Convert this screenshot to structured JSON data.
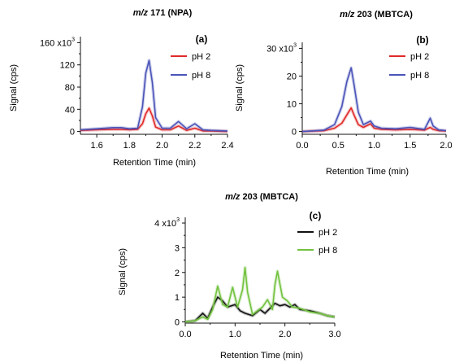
{
  "figure": {
    "colors": {
      "ph2": "#e02a2a",
      "ph8": "#4a54b8",
      "ph2_c": "#111111",
      "ph8_c": "#72c23f"
    }
  },
  "chart_data": [
    {
      "id": "a",
      "type": "line",
      "panel_label": "(a)",
      "title": {
        "italic": "m/z",
        "rest": " 171 (NPA)"
      },
      "xlabel": "Retention Time (min)",
      "ylabel": "Signal (cps)",
      "xlim": [
        1.5,
        2.4
      ],
      "ylim": [
        -5,
        165
      ],
      "xticks": [
        1.6,
        1.8,
        2.0,
        2.2,
        2.4
      ],
      "xtick_labels": [
        "1.6",
        "1.8",
        "2.0",
        "2.2",
        "2.4"
      ],
      "yticks": [
        0,
        40,
        80,
        120,
        160
      ],
      "ytick_labels": [
        "0",
        "40",
        "80",
        "120",
        "160 x10"
      ],
      "y_exponent_label": "3",
      "legend_position": "top-right",
      "series": [
        {
          "name": "pH 2",
          "color_key": "ph2",
          "x": [
            1.5,
            1.6,
            1.7,
            1.75,
            1.8,
            1.85,
            1.88,
            1.9,
            1.92,
            1.94,
            1.96,
            2.0,
            2.05,
            2.1,
            2.15,
            2.2,
            2.25,
            2.3,
            2.4
          ],
          "y": [
            2,
            3,
            4,
            4,
            3,
            4,
            14,
            32,
            42,
            28,
            8,
            3,
            3,
            10,
            2,
            6,
            1,
            1,
            0
          ]
        },
        {
          "name": "pH 8",
          "color_key": "ph8",
          "x": [
            1.5,
            1.6,
            1.7,
            1.75,
            1.8,
            1.85,
            1.88,
            1.9,
            1.92,
            1.94,
            1.96,
            2.0,
            2.05,
            2.1,
            2.15,
            2.2,
            2.25,
            2.3,
            2.4
          ],
          "y": [
            3,
            5,
            7,
            7,
            5,
            6,
            45,
            105,
            128,
            88,
            25,
            6,
            6,
            18,
            5,
            14,
            3,
            2,
            1
          ]
        }
      ]
    },
    {
      "id": "b",
      "type": "line",
      "panel_label": "(b)",
      "title": {
        "italic": "m/z",
        "rest": " 203 (MBTCA)"
      },
      "xlabel": "Retention Time (min)",
      "ylabel": "Signal (cps)",
      "xlim": [
        0.0,
        2.0
      ],
      "ylim": [
        -1,
        31
      ],
      "xticks": [
        0.0,
        0.5,
        1.0,
        1.5,
        2.0
      ],
      "xtick_labels": [
        "0.0",
        "0.5",
        "1.0",
        "1.5",
        "2.0"
      ],
      "yticks": [
        0,
        10,
        20,
        30
      ],
      "ytick_labels": [
        "0",
        "10",
        "20",
        "30 x10"
      ],
      "y_exponent_label": "3",
      "legend_position": "top-right",
      "series": [
        {
          "name": "pH 2",
          "color_key": "ph2",
          "x": [
            0.0,
            0.3,
            0.45,
            0.55,
            0.62,
            0.68,
            0.72,
            0.78,
            0.85,
            0.95,
            1.0,
            1.1,
            1.3,
            1.5,
            1.7,
            1.78,
            1.82,
            1.9,
            2.0
          ],
          "y": [
            0,
            0.3,
            1.2,
            3,
            6,
            8.5,
            6,
            2.5,
            1.5,
            2.8,
            1.2,
            0.8,
            0.6,
            0.8,
            0.5,
            1.5,
            0.8,
            0.3,
            0.2
          ]
        },
        {
          "name": "pH 8",
          "color_key": "ph8",
          "x": [
            0.0,
            0.3,
            0.45,
            0.55,
            0.62,
            0.68,
            0.72,
            0.78,
            0.85,
            0.95,
            1.0,
            1.1,
            1.3,
            1.5,
            1.7,
            1.78,
            1.82,
            1.9,
            2.0
          ],
          "y": [
            0,
            0.5,
            2.5,
            9,
            18,
            23,
            17,
            7,
            2.5,
            3.8,
            2,
            1.2,
            1,
            1.5,
            0.8,
            4.8,
            2,
            0.6,
            0.3
          ]
        }
      ]
    },
    {
      "id": "c",
      "type": "line",
      "panel_label": "(c)",
      "title": {
        "italic": "m/z",
        "rest": " 203 (MBTCA)"
      },
      "xlabel": "Retention Time (min)",
      "ylabel": "Signal (cps)",
      "xlim": [
        0.0,
        3.0
      ],
      "ylim": [
        -0.05,
        4.1
      ],
      "xticks": [
        0.0,
        1.0,
        2.0,
        3.0
      ],
      "xtick_labels": [
        "0.0",
        "1.0",
        "2.0",
        "3.0"
      ],
      "yticks": [
        0,
        1,
        2,
        3,
        4
      ],
      "ytick_labels": [
        "0",
        "1",
        "2",
        "3",
        "4 x10"
      ],
      "y_exponent_label": "3",
      "legend_position": "top-right",
      "series": [
        {
          "name": "pH 2",
          "color_key": "ph2_c",
          "x": [
            0.0,
            0.2,
            0.35,
            0.45,
            0.55,
            0.65,
            0.75,
            0.85,
            1.0,
            1.1,
            1.2,
            1.35,
            1.5,
            1.6,
            1.7,
            1.8,
            1.9,
            2.0,
            2.1,
            2.2,
            2.3,
            2.5,
            2.7,
            2.85,
            3.0
          ],
          "y": [
            0,
            0.05,
            0.35,
            0.15,
            0.6,
            1.0,
            0.85,
            0.6,
            0.7,
            0.45,
            0.35,
            0.25,
            0.5,
            0.35,
            0.55,
            0.75,
            0.65,
            0.7,
            0.6,
            0.7,
            0.5,
            0.45,
            0.35,
            0.25,
            0.2
          ]
        },
        {
          "name": "pH 8",
          "color_key": "ph8_c",
          "x": [
            0.0,
            0.2,
            0.35,
            0.45,
            0.55,
            0.65,
            0.75,
            0.85,
            0.95,
            1.05,
            1.15,
            1.2,
            1.25,
            1.35,
            1.45,
            1.55,
            1.65,
            1.75,
            1.8,
            1.85,
            1.95,
            2.05,
            2.15,
            2.3,
            2.5,
            2.7,
            2.85,
            3.0
          ],
          "y": [
            0,
            0.05,
            0.2,
            0.1,
            0.5,
            1.45,
            0.7,
            0.6,
            1.4,
            0.6,
            1.3,
            2.2,
            1.2,
            0.3,
            0.45,
            0.6,
            0.9,
            0.5,
            1.5,
            2.05,
            1.0,
            0.85,
            0.6,
            0.55,
            0.4,
            0.35,
            0.25,
            0.2
          ]
        }
      ]
    }
  ]
}
